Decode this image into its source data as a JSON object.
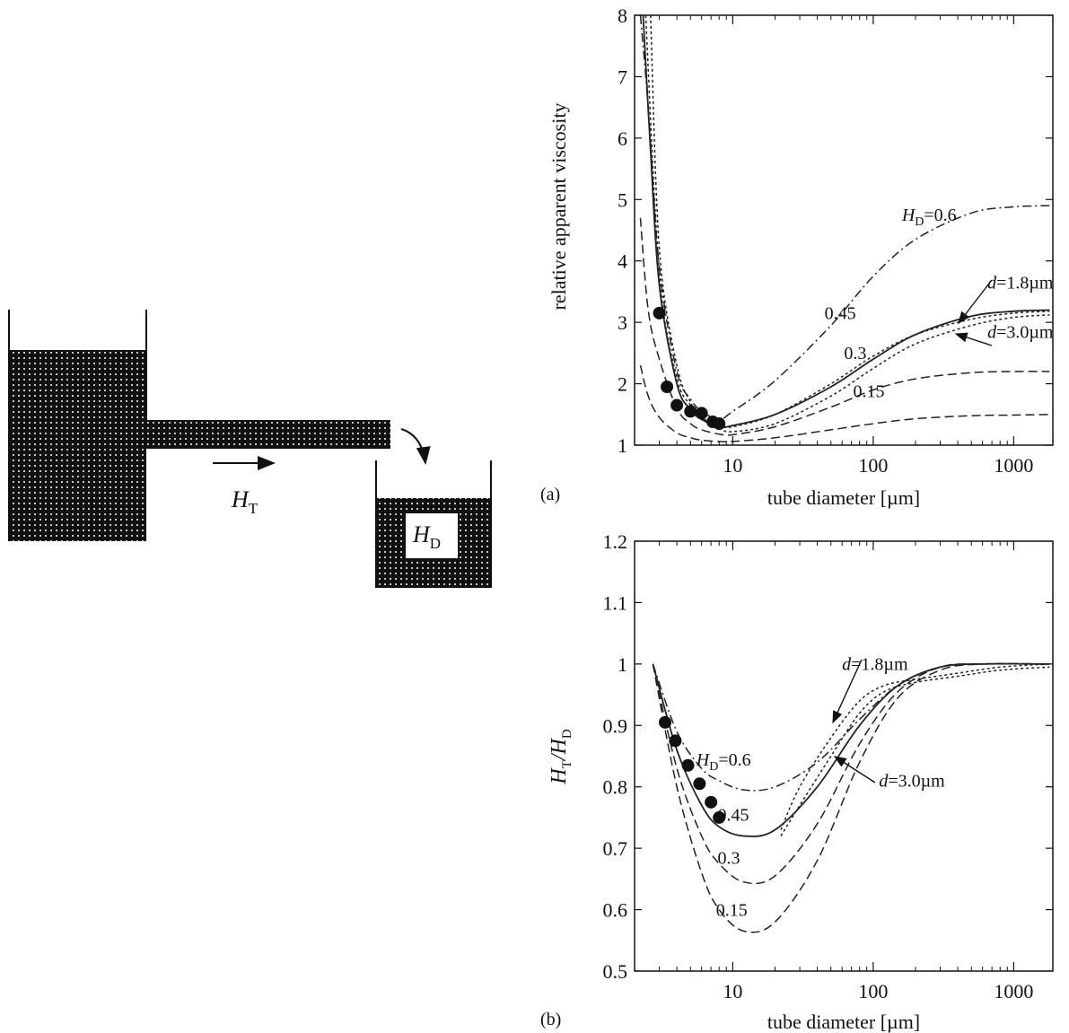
{
  "diagram": {
    "ht_label": "H",
    "ht_sub": "T",
    "hd_label": "H",
    "hd_sub": "D"
  },
  "chart_data": [
    {
      "type": "line",
      "panel_label": "(a)",
      "xlabel": "tube diameter [µm]",
      "ylabel": "relative apparent viscosity",
      "xscale": "log",
      "xlim": [
        2.0,
        1900
      ],
      "ylim": [
        1,
        8
      ],
      "xticks": [
        10,
        100,
        1000
      ],
      "xtick_labels": [
        "10",
        "100",
        "1000"
      ],
      "yticks": [
        1,
        2,
        3,
        4,
        5,
        6,
        7,
        8
      ],
      "ytick_labels": [
        "1",
        "2",
        "3",
        "4",
        "5",
        "6",
        "7",
        "8"
      ],
      "series": [
        {
          "name": "H_D=0.6",
          "style": "dashdot",
          "x": [
            2.2,
            2.5,
            3,
            4,
            5,
            6,
            8,
            10,
            20,
            50,
            100,
            200,
            500,
            1000,
            1800
          ],
          "y": [
            8.0,
            6.5,
            3.9,
            2.2,
            1.75,
            1.55,
            1.42,
            1.55,
            2.05,
            2.95,
            3.75,
            4.35,
            4.78,
            4.88,
            4.9
          ]
        },
        {
          "name": "0.45",
          "style": "solid",
          "x": [
            2.3,
            2.6,
            3,
            4,
            5,
            6,
            8,
            10,
            20,
            50,
            100,
            200,
            500,
            1000,
            1800
          ],
          "y": [
            8.0,
            5.8,
            3.6,
            2.0,
            1.58,
            1.42,
            1.3,
            1.32,
            1.5,
            1.95,
            2.4,
            2.8,
            3.1,
            3.18,
            3.2
          ]
        },
        {
          "name": "d=1.8µm",
          "style": "dotted",
          "x": [
            2.4,
            3,
            4,
            5,
            6,
            8,
            10,
            20,
            50,
            100,
            200,
            500,
            1000,
            1800
          ],
          "y": [
            8.0,
            3.8,
            2.1,
            1.65,
            1.45,
            1.32,
            1.3,
            1.5,
            2.0,
            2.45,
            2.8,
            3.05,
            3.15,
            3.18
          ]
        },
        {
          "name": "d=3.0µm",
          "style": "dotted",
          "x": [
            2.6,
            3,
            4,
            5,
            6,
            8,
            10,
            20,
            50,
            100,
            200,
            500,
            1000,
            1800
          ],
          "y": [
            8.0,
            4.2,
            2.3,
            1.7,
            1.45,
            1.28,
            1.22,
            1.35,
            1.8,
            2.25,
            2.65,
            2.95,
            3.08,
            3.12
          ]
        },
        {
          "name": "0.3",
          "style": "longdash",
          "x": [
            2.2,
            2.5,
            3,
            4,
            5,
            6,
            8,
            10,
            20,
            50,
            100,
            200,
            500,
            1000,
            1800
          ],
          "y": [
            4.7,
            3.2,
            2.4,
            1.6,
            1.35,
            1.25,
            1.18,
            1.17,
            1.3,
            1.62,
            1.9,
            2.08,
            2.18,
            2.2,
            2.2
          ]
        },
        {
          "name": "0.15",
          "style": "longdash",
          "x": [
            2.2,
            2.5,
            3,
            4,
            5,
            6,
            8,
            10,
            20,
            50,
            100,
            200,
            500,
            1000,
            1800
          ],
          "y": [
            2.3,
            1.8,
            1.45,
            1.2,
            1.12,
            1.08,
            1.06,
            1.06,
            1.12,
            1.25,
            1.35,
            1.43,
            1.48,
            1.49,
            1.5
          ]
        }
      ],
      "points": {
        "x": [
          3.0,
          3.4,
          4.0,
          5.0,
          6.0,
          7.2,
          8.0
        ],
        "y": [
          3.15,
          1.95,
          1.65,
          1.55,
          1.52,
          1.38,
          1.35
        ]
      },
      "annotations": [
        {
          "text": "H",
          "sub": "D",
          "suffix": "=0.6",
          "italic": true,
          "x": 160,
          "y": 4.65
        },
        {
          "text": "0.45",
          "x": 45,
          "y": 3.05
        },
        {
          "text": "d",
          "suffix": "=1.8µm",
          "italic": true,
          "x": 650,
          "y": 3.55
        },
        {
          "text": "d",
          "suffix": "=3.0µm",
          "italic": true,
          "x": 650,
          "y": 2.75
        },
        {
          "text": "0.3",
          "x": 62,
          "y": 2.4
        },
        {
          "text": "0.15",
          "x": 72,
          "y": 1.78
        }
      ]
    },
    {
      "type": "line",
      "panel_label": "(b)",
      "xlabel": "tube diameter [µm]",
      "ylabel": "H_T/H_D",
      "xscale": "log",
      "xlim": [
        2.0,
        1900
      ],
      "ylim": [
        0.5,
        1.2
      ],
      "xticks": [
        10,
        100,
        1000
      ],
      "xtick_labels": [
        "10",
        "100",
        "1000"
      ],
      "yticks": [
        0.5,
        0.6,
        0.7,
        0.8,
        0.9,
        1.0,
        1.1,
        1.2
      ],
      "ytick_labels": [
        "0.5",
        "0.6",
        "0.7",
        "0.8",
        "0.9",
        "1",
        "1.1",
        "1.2"
      ],
      "series": [
        {
          "name": "H_D=0.6",
          "style": "dashdot",
          "x": [
            2.7,
            4,
            6,
            8,
            12,
            20,
            40,
            80,
            150,
            300,
            600,
            1800
          ],
          "y": [
            1.0,
            0.89,
            0.83,
            0.81,
            0.795,
            0.8,
            0.84,
            0.91,
            0.965,
            0.995,
            1.0,
            1.0
          ]
        },
        {
          "name": "0.45",
          "style": "solid",
          "x": [
            2.7,
            4,
            6,
            8,
            12,
            20,
            40,
            80,
            150,
            300,
            600,
            1800
          ],
          "y": [
            1.0,
            0.86,
            0.77,
            0.735,
            0.72,
            0.73,
            0.8,
            0.9,
            0.965,
            0.995,
            1.0,
            1.0
          ]
        },
        {
          "name": "0.3",
          "style": "longdash",
          "x": [
            2.7,
            4,
            6,
            8,
            12,
            20,
            40,
            80,
            150,
            300,
            600,
            1800
          ],
          "y": [
            1.0,
            0.83,
            0.72,
            0.675,
            0.645,
            0.655,
            0.74,
            0.87,
            0.955,
            0.995,
            1.0,
            1.0
          ]
        },
        {
          "name": "0.15",
          "style": "longdash",
          "x": [
            2.7,
            4,
            6,
            8,
            12,
            20,
            40,
            80,
            150,
            300,
            600,
            1800
          ],
          "y": [
            1.0,
            0.8,
            0.66,
            0.6,
            0.565,
            0.58,
            0.68,
            0.84,
            0.945,
            0.99,
            1.0,
            1.0
          ]
        },
        {
          "name": "d=1.8µm",
          "style": "dotted",
          "x": [
            22,
            30,
            50,
            80,
            120,
            200,
            400,
            800,
            1800
          ],
          "y": [
            0.73,
            0.8,
            0.88,
            0.94,
            0.965,
            0.975,
            0.985,
            0.995,
            1.0
          ]
        },
        {
          "name": "d=3.0µm",
          "style": "dotted",
          "x": [
            22,
            30,
            50,
            80,
            120,
            200,
            400,
            800,
            1800
          ],
          "y": [
            0.72,
            0.77,
            0.85,
            0.92,
            0.955,
            0.97,
            0.98,
            0.99,
            0.995
          ]
        }
      ],
      "points": {
        "x": [
          3.3,
          3.9,
          4.8,
          5.8,
          7.0,
          8.0
        ],
        "y": [
          0.905,
          0.875,
          0.835,
          0.805,
          0.775,
          0.75
        ]
      },
      "annotations": [
        {
          "text": "d",
          "suffix": "=1.8µm",
          "italic": true,
          "x": 60,
          "y": 0.99
        },
        {
          "text": "H",
          "sub": "D",
          "suffix": "=0.6",
          "italic": true,
          "x": 5.5,
          "y": 0.835
        },
        {
          "text": "d",
          "suffix": "=3.0µm",
          "italic": true,
          "x": 110,
          "y": 0.8
        },
        {
          "text": "0.45",
          "x": 7.8,
          "y": 0.745
        },
        {
          "text": "0.3",
          "x": 7.8,
          "y": 0.675
        },
        {
          "text": "0.15",
          "x": 7.6,
          "y": 0.59
        }
      ]
    }
  ]
}
